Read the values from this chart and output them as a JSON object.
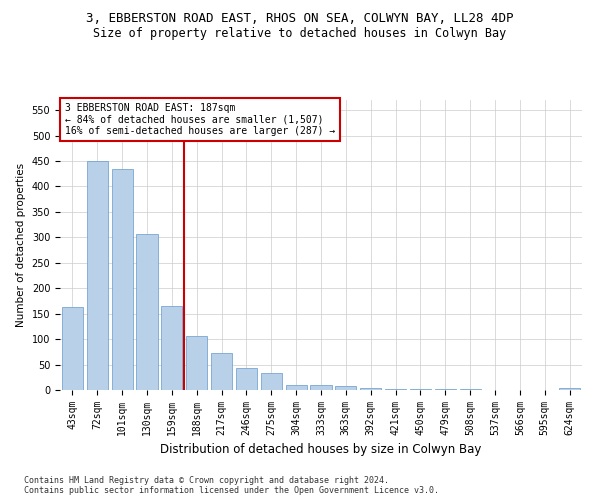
{
  "title": "3, EBBERSTON ROAD EAST, RHOS ON SEA, COLWYN BAY, LL28 4DP",
  "subtitle": "Size of property relative to detached houses in Colwyn Bay",
  "xlabel": "Distribution of detached houses by size in Colwyn Bay",
  "ylabel": "Number of detached properties",
  "categories": [
    "43sqm",
    "72sqm",
    "101sqm",
    "130sqm",
    "159sqm",
    "188sqm",
    "217sqm",
    "246sqm",
    "275sqm",
    "304sqm",
    "333sqm",
    "363sqm",
    "392sqm",
    "421sqm",
    "450sqm",
    "479sqm",
    "508sqm",
    "537sqm",
    "566sqm",
    "595sqm",
    "624sqm"
  ],
  "values": [
    163,
    450,
    435,
    307,
    165,
    107,
    72,
    44,
    33,
    10,
    10,
    8,
    4,
    2,
    1,
    1,
    1,
    0,
    0,
    0,
    3
  ],
  "bar_color": "#b8d0e8",
  "bar_edge_color": "#6699cc",
  "marker_bar_index": 5,
  "marker_color": "#cc0000",
  "annotation_text": "3 EBBERSTON ROAD EAST: 187sqm\n← 84% of detached houses are smaller (1,507)\n16% of semi-detached houses are larger (287) →",
  "annotation_box_color": "#ffffff",
  "annotation_box_edge_color": "#cc0000",
  "ylim": [
    0,
    570
  ],
  "yticks": [
    0,
    50,
    100,
    150,
    200,
    250,
    300,
    350,
    400,
    450,
    500,
    550
  ],
  "background_color": "#ffffff",
  "grid_color": "#cccccc",
  "footnote": "Contains HM Land Registry data © Crown copyright and database right 2024.\nContains public sector information licensed under the Open Government Licence v3.0.",
  "title_fontsize": 9,
  "subtitle_fontsize": 8.5,
  "xlabel_fontsize": 8.5,
  "ylabel_fontsize": 7.5,
  "tick_fontsize": 7,
  "annotation_fontsize": 7,
  "footnote_fontsize": 6
}
